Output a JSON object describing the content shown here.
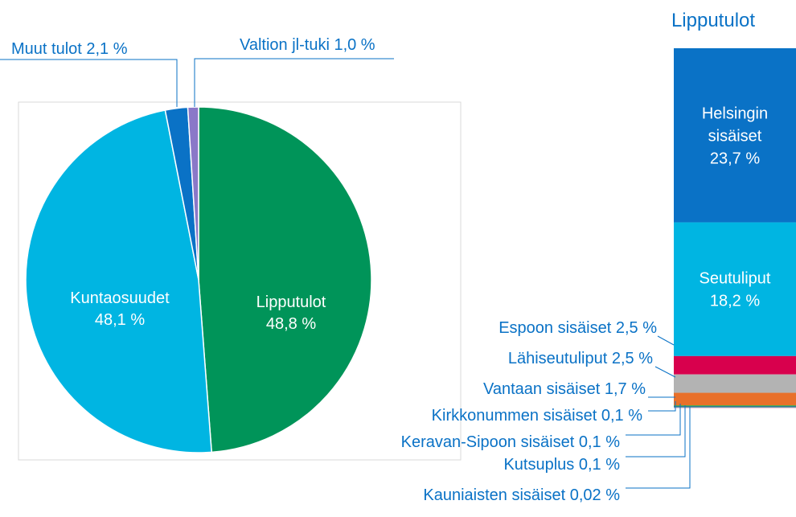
{
  "chart_data": [
    {
      "type": "pie",
      "title": "",
      "slices": [
        {
          "name": "Lipputulot",
          "value": 48.8,
          "label": "48,8 %",
          "color": "#009459"
        },
        {
          "name": "Kuntaosuudet",
          "value": 48.1,
          "label": "48,1 %",
          "color": "#00b5e2"
        },
        {
          "name": "Muut tulot",
          "value": 2.1,
          "label": "Muut tulot 2,1 %",
          "color": "#0a72c6"
        },
        {
          "name": "Valtion jl-tuki",
          "value": 1.0,
          "label": "Valtion jl-tuki 1,0 %",
          "color": "#8a78c8"
        }
      ]
    },
    {
      "type": "bar",
      "stacked": true,
      "title": "Lipputulot",
      "series": [
        {
          "name": "Helsingin sisäiset",
          "lines": [
            "Helsingin",
            "sisäiset"
          ],
          "value": 23.7,
          "label": "23,7 %",
          "color": "#0a72c6"
        },
        {
          "name": "Seutuliput",
          "value": 18.2,
          "label": "18,2 %",
          "color": "#00b5e2"
        },
        {
          "name": "Espoon sisäiset",
          "value": 2.5,
          "label": "Espoon sisäiset  2,5 %",
          "color": "#d8004d"
        },
        {
          "name": "Lähiseutuliput",
          "value": 2.5,
          "label": "Lähiseutuliput  2,5 %",
          "color": "#b3b3b3"
        },
        {
          "name": "Vantaan sisäiset",
          "value": 1.7,
          "label": "Vantaan sisäiset  1,7 %",
          "color": "#e8702a"
        },
        {
          "name": "Kirkkonummen sisäiset",
          "value": 0.1,
          "label": "Kirkkonummen sisäiset  0,1 %",
          "color": "#4aa83a"
        },
        {
          "name": "Keravan-Sipoon sisäiset",
          "value": 0.1,
          "label": "Keravan-Sipoon sisäiset  0,1 %",
          "color": "#1f6b8a"
        },
        {
          "name": "Kutsuplus",
          "value": 0.1,
          "label": "Kutsuplus  0,1 %",
          "color": "#2a9d8f"
        },
        {
          "name": "Kauniaisten sisäiset",
          "value": 0.02,
          "label": "Kauniaisten sisäiset  0,02 %",
          "color": "#e070b0"
        }
      ]
    }
  ]
}
